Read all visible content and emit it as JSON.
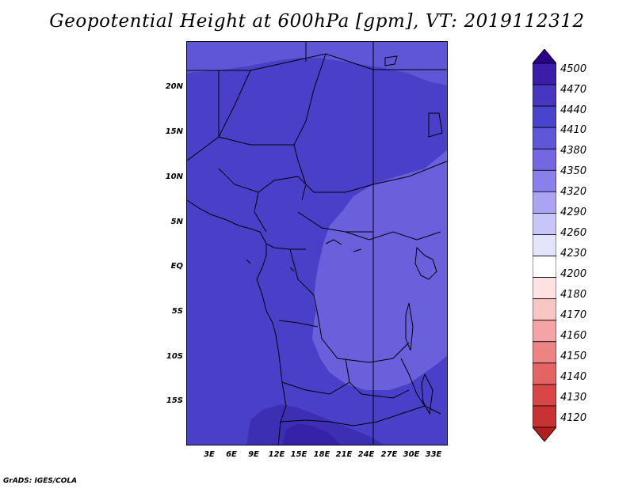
{
  "title": "Geopotential Height at 600hPa [gpm], VT: 2019112312",
  "credit": "GrADS: IGES/COLA",
  "map": {
    "latitude_labels": [
      "20N",
      "15N",
      "10N",
      "5N",
      "EQ",
      "5S",
      "10S",
      "15S"
    ],
    "longitude_labels": [
      "3E",
      "6E",
      "9E",
      "12E",
      "15E",
      "18E",
      "21E",
      "24E",
      "27E",
      "30E",
      "33E"
    ]
  },
  "colorbar": {
    "levels": [
      "4500",
      "4470",
      "4440",
      "4410",
      "4380",
      "4350",
      "4320",
      "4290",
      "4260",
      "4230",
      "4200",
      "4180",
      "4170",
      "4160",
      "4150",
      "4140",
      "4130",
      "4120"
    ],
    "colors": [
      "#28008c",
      "#3a1eaa",
      "#4636c0",
      "#4a44cc",
      "#5e58d8",
      "#7468e2",
      "#8a80ec",
      "#aaa4f2",
      "#c8c6f8",
      "#e4e4fc",
      "#ffffff",
      "#fde2e2",
      "#f9c6c6",
      "#f4a4a4",
      "#ec8484",
      "#e46464",
      "#d84646",
      "#c83232",
      "#b01e1e"
    ]
  }
}
